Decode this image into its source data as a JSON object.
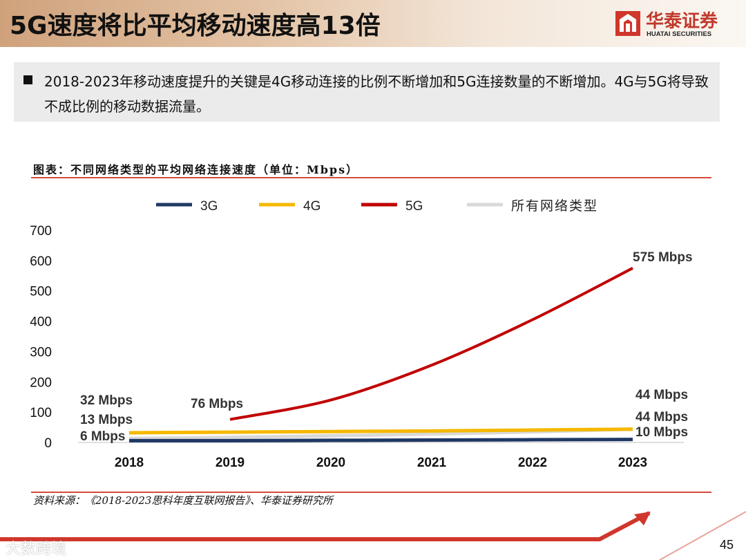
{
  "header": {
    "title": "5G速度将比平均移动速度高13倍",
    "logo_cn": "华泰证券",
    "logo_en": "HUATAI SECURITIES"
  },
  "summary": {
    "text": "2018-2023年移动速度提升的关键是4G移动连接的比例不断增加和5G连接数量的不断增加。4G与5G将导致不成比例的移动数据流量。"
  },
  "chart_caption": "图表：不同网络类型的平均网络连接速度（单位：Mbps）",
  "source": "资料来源：《2018-2023思科年度互联网报告》、华泰证券研究所",
  "watermark": "大数跨境",
  "page_number": "45",
  "colors": {
    "3G": "#1f3864",
    "4G": "#f5b800",
    "5G": "#c00000",
    "all": "#d9d9d9",
    "accent": "#d64a3a"
  },
  "chart_data": {
    "type": "line",
    "title": "图表：不同网络类型的平均网络连接速度（单位：Mbps）",
    "x": [
      "2018",
      "2019",
      "2020",
      "2021",
      "2022",
      "2023"
    ],
    "ylim": [
      0,
      700
    ],
    "yticks": [
      "0",
      "100",
      "200",
      "300",
      "400",
      "500",
      "600",
      "700"
    ],
    "grid": false,
    "legend_position": "top",
    "series": [
      {
        "name": "3G",
        "color": "#1f3864",
        "values": [
          6,
          6,
          7,
          8,
          9,
          10
        ]
      },
      {
        "name": "4G",
        "color": "#f5b800",
        "values": [
          32,
          34,
          36,
          38,
          41,
          44
        ]
      },
      {
        "name": "5G",
        "color": "#c00000",
        "values": [
          null,
          76,
          140,
          255,
          405,
          575
        ]
      },
      {
        "name": "所有网络类型",
        "color": "#d9d9d9",
        "values": [
          13,
          17,
          22,
          28,
          35,
          44
        ]
      }
    ],
    "annotations": [
      {
        "text": "32 Mbps",
        "x": "2018",
        "y": 32
      },
      {
        "text": "13 Mbps",
        "x": "2018",
        "y": 13
      },
      {
        "text": "6 Mbps",
        "x": "2018",
        "y": 6
      },
      {
        "text": "76 Mbps",
        "x": "2019",
        "y": 76
      },
      {
        "text": "575 Mbps",
        "x": "2023",
        "y": 575
      },
      {
        "text": "44 Mbps",
        "x": "2023",
        "y": 44
      },
      {
        "text": "44 Mbps",
        "x": "2023",
        "y": 44
      },
      {
        "text": "10 Mbps",
        "x": "2023",
        "y": 10
      }
    ]
  }
}
